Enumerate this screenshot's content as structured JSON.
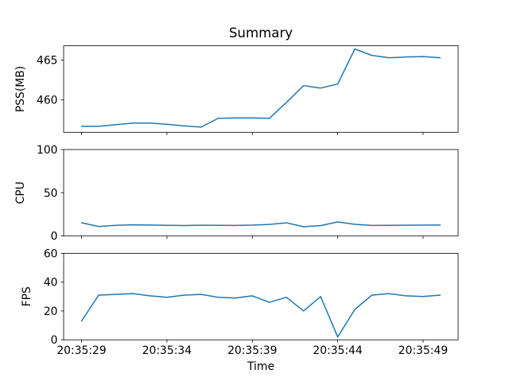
{
  "title": "Summary",
  "line_color": "#1f77b4",
  "axis_color": "#000000",
  "background_color": "#ffffff",
  "x_axis": {
    "label": "Time",
    "tick_labels": [
      "20:35:29",
      "20:35:34",
      "20:35:39",
      "20:35:44",
      "20:35:49"
    ],
    "tick_seconds": [
      29,
      34,
      39,
      44,
      49
    ],
    "xlim_seconds": [
      27.95,
      51.05
    ]
  },
  "chart_data": [
    {
      "type": "line",
      "name": "PSS over time",
      "ylabel": "PSS(MB)",
      "ylim": [
        455.95,
        466.8
      ],
      "yticks": [
        460,
        465
      ],
      "grid": false,
      "legend": "none",
      "x_seconds": [
        29,
        30,
        31,
        32,
        33,
        34,
        35,
        36,
        37,
        38,
        39,
        40,
        41,
        42,
        43,
        44,
        45,
        46,
        47,
        48,
        49,
        50
      ],
      "values": [
        456.7,
        456.7,
        456.9,
        457.1,
        457.1,
        456.95,
        456.75,
        456.6,
        457.7,
        457.75,
        457.75,
        457.7,
        459.7,
        461.8,
        461.5,
        462.0,
        466.4,
        465.6,
        465.3,
        465.4,
        465.45,
        465.3
      ]
    },
    {
      "type": "line",
      "name": "CPU over time",
      "ylabel": "CPU",
      "ylim": [
        0,
        100
      ],
      "yticks": [
        0,
        50,
        100
      ],
      "grid": false,
      "legend": "none",
      "x_seconds": [
        29,
        30,
        31,
        32,
        33,
        34,
        35,
        36,
        37,
        38,
        39,
        40,
        41,
        42,
        43,
        44,
        45,
        46,
        47,
        48,
        49,
        50
      ],
      "values": [
        15.4,
        11.0,
        12.4,
        13.0,
        12.7,
        12.4,
        12.2,
        12.5,
        12.4,
        12.3,
        12.6,
        13.4,
        15.3,
        10.8,
        12.0,
        16.3,
        13.5,
        12.3,
        12.4,
        12.5,
        12.6,
        12.7
      ]
    },
    {
      "type": "line",
      "name": "FPS over time",
      "ylabel": "FPS",
      "ylim": [
        0,
        60
      ],
      "yticks": [
        0,
        20,
        40,
        60
      ],
      "grid": false,
      "legend": "none",
      "x_seconds": [
        29,
        30,
        31,
        32,
        33,
        34,
        35,
        36,
        37,
        38,
        39,
        40,
        41,
        42,
        43,
        44,
        45,
        46,
        47,
        48,
        49,
        50
      ],
      "values": [
        13,
        31,
        31.5,
        32,
        30.5,
        29.5,
        31,
        31.5,
        29.5,
        29,
        30.5,
        26,
        29.5,
        20,
        30,
        2,
        21,
        31,
        32,
        30.5,
        30,
        31
      ]
    }
  ]
}
